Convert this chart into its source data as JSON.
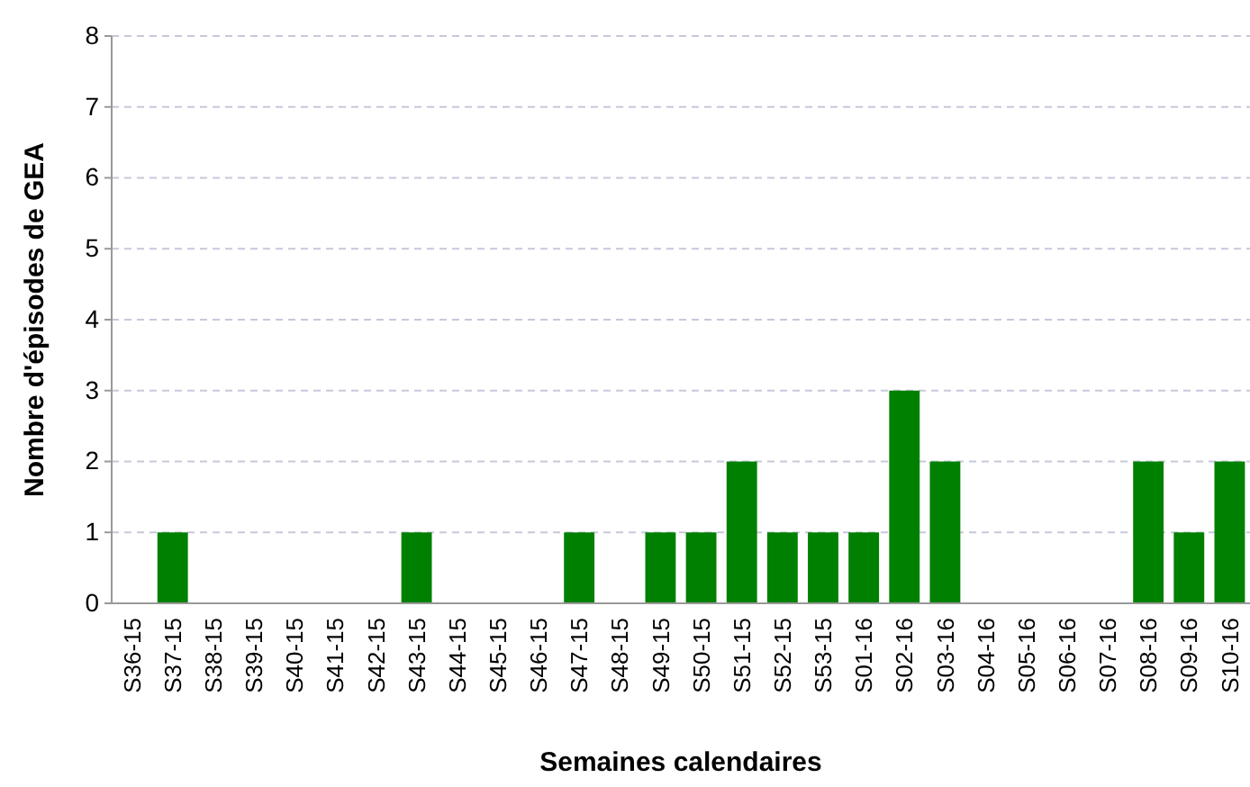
{
  "chart_data": {
    "type": "bar",
    "xlabel": "Semaines calendaires",
    "ylabel": "Nombre d'épisodes de GEA",
    "categories": [
      "S36-15",
      "S37-15",
      "S38-15",
      "S39-15",
      "S40-15",
      "S41-15",
      "S42-15",
      "S43-15",
      "S44-15",
      "S45-15",
      "S46-15",
      "S47-15",
      "S48-15",
      "S49-15",
      "S50-15",
      "S51-15",
      "S52-15",
      "S53-15",
      "S01-16",
      "S02-16",
      "S03-16",
      "S04-16",
      "S05-16",
      "S06-16",
      "S07-16",
      "S08-16",
      "S09-16",
      "S10-16"
    ],
    "values": [
      0,
      1,
      0,
      0,
      0,
      0,
      0,
      1,
      0,
      0,
      0,
      1,
      0,
      1,
      1,
      2,
      1,
      1,
      1,
      3,
      2,
      0,
      0,
      0,
      0,
      2,
      1,
      2
    ],
    "color": "#008000",
    "ylim": [
      0,
      8
    ],
    "yticks": [
      0,
      1,
      2,
      3,
      4,
      5,
      6,
      7,
      8
    ],
    "grid": "y"
  }
}
